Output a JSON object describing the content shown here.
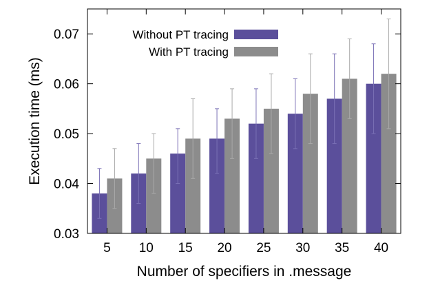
{
  "chart_data": {
    "type": "bar",
    "categories": [
      "5",
      "10",
      "15",
      "20",
      "25",
      "30",
      "35",
      "40"
    ],
    "series": [
      {
        "name": "Without PT tracing",
        "color": "#5b4f9b",
        "values": [
          0.038,
          0.042,
          0.046,
          0.049,
          0.052,
          0.054,
          0.057,
          0.06
        ],
        "error_low": [
          0.033,
          0.036,
          0.04,
          0.042,
          0.045,
          0.047,
          0.048,
          0.05
        ],
        "error_high": [
          0.043,
          0.048,
          0.051,
          0.055,
          0.059,
          0.061,
          0.066,
          0.068
        ]
      },
      {
        "name": "With PT tracing",
        "color": "#8c8c8c",
        "values": [
          0.041,
          0.045,
          0.049,
          0.053,
          0.055,
          0.058,
          0.061,
          0.062
        ],
        "error_low": [
          0.035,
          0.038,
          0.041,
          0.045,
          0.046,
          0.048,
          0.053,
          0.051
        ],
        "error_high": [
          0.047,
          0.05,
          0.057,
          0.059,
          0.062,
          0.066,
          0.069,
          0.073
        ]
      }
    ],
    "title": "",
    "xlabel": "Number of specifiers in .message",
    "ylabel": "Execution time (ms)",
    "ylim": [
      0.03,
      0.075
    ],
    "yticks": [
      "0.03",
      "0.04",
      "0.05",
      "0.06",
      "0.07"
    ],
    "ytick_values": [
      0.03,
      0.04,
      0.05,
      0.06,
      0.07
    ],
    "grid": false,
    "legend_position": "top-left"
  }
}
